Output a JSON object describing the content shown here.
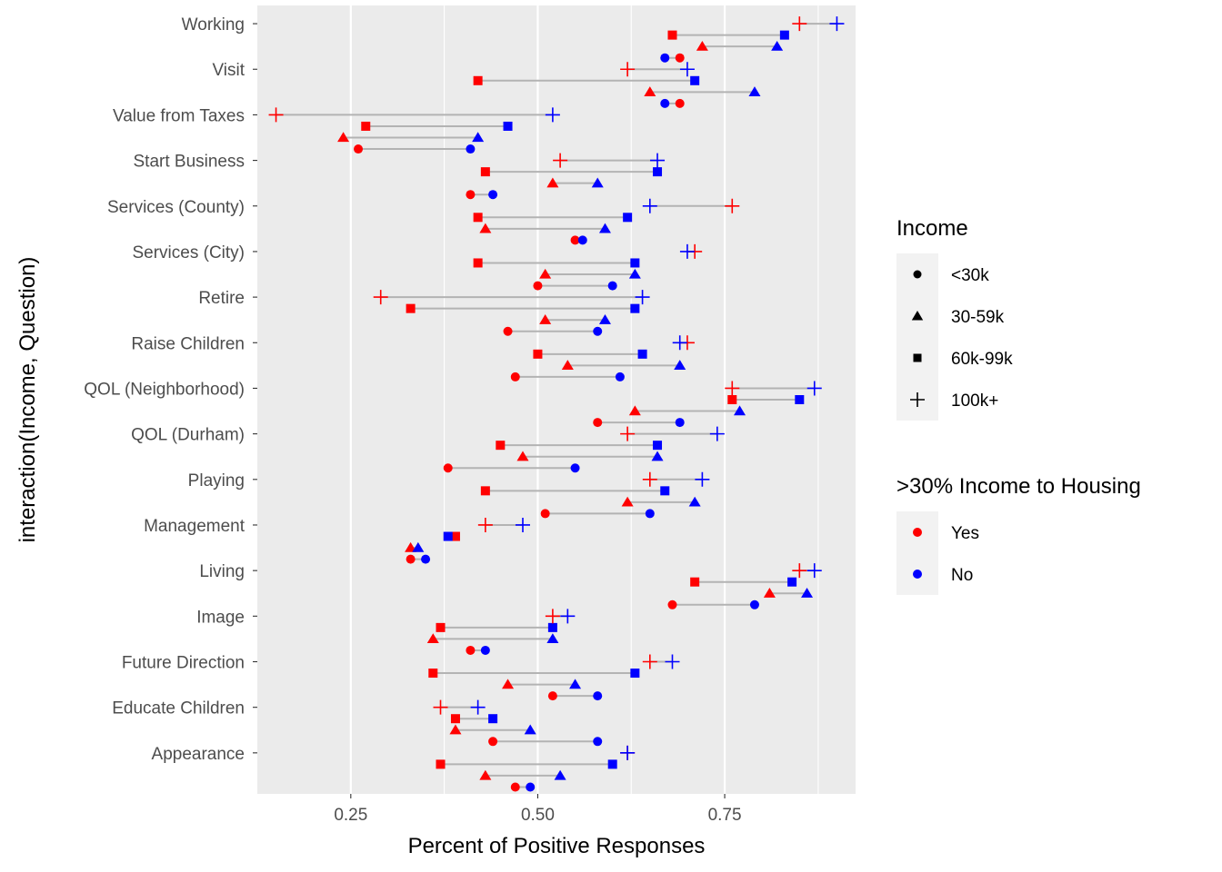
{
  "chart_data": {
    "type": "dumbbell",
    "xlabel": "Percent of Positive Responses",
    "ylabel": "interaction(Income, Question)",
    "xlim": [
      0.125,
      0.925
    ],
    "x_ticks": [
      0.25,
      0.5,
      0.75
    ],
    "x_tick_labels": [
      "0.25",
      "0.50",
      "0.75"
    ],
    "grid": true,
    "colors": {
      "yes": "#ff0000",
      "no": "#0000ff",
      "segment": "#b3b3b3",
      "panel": "#ebebeb",
      "grid": "#ffffff"
    },
    "legend_position": "right",
    "income_levels": [
      "<30k",
      "30-59k",
      "60k-99k",
      "100k+"
    ],
    "income_shapes": [
      "circle",
      "triangle",
      "square",
      "plus"
    ],
    "housing_levels": [
      "Yes",
      "No"
    ],
    "legend": {
      "income_title": "Income",
      "housing_title": ">30% Income to Housing"
    },
    "questions": [
      "Appearance",
      "Educate Children",
      "Future Direction",
      "Image",
      "Living",
      "Management",
      "Playing",
      "QOL (Durham)",
      "QOL (Neighborhood)",
      "Raise Children",
      "Retire",
      "Services (City)",
      "Services (County)",
      "Start Business",
      "Value from Taxes",
      "Visit",
      "Working"
    ],
    "values": {
      "Appearance": {
        "<30k": [
          0.47,
          0.49
        ],
        "30-59k": [
          0.43,
          0.53
        ],
        "60k-99k": [
          0.37,
          0.6
        ],
        "100k+": [
          0.62,
          0.62
        ]
      },
      "Educate Children": {
        "<30k": [
          0.44,
          0.58
        ],
        "30-59k": [
          0.39,
          0.49
        ],
        "60k-99k": [
          0.39,
          0.44
        ],
        "100k+": [
          0.37,
          0.42
        ]
      },
      "Future Direction": {
        "<30k": [
          0.52,
          0.58
        ],
        "30-59k": [
          0.46,
          0.55
        ],
        "60k-99k": [
          0.36,
          0.63
        ],
        "100k+": [
          0.65,
          0.68
        ]
      },
      "Image": {
        "<30k": [
          0.41,
          0.43
        ],
        "30-59k": [
          0.36,
          0.52
        ],
        "60k-99k": [
          0.37,
          0.52
        ],
        "100k+": [
          0.52,
          0.54
        ]
      },
      "Living": {
        "<30k": [
          0.68,
          0.79
        ],
        "30-59k": [
          0.81,
          0.86
        ],
        "60k-99k": [
          0.71,
          0.84
        ],
        "100k+": [
          0.85,
          0.87
        ]
      },
      "Management": {
        "<30k": [
          0.33,
          0.35
        ],
        "30-59k": [
          0.33,
          0.34
        ],
        "60k-99k": [
          0.39,
          0.38
        ],
        "100k+": [
          0.43,
          0.48
        ]
      },
      "Playing": {
        "<30k": [
          0.51,
          0.65
        ],
        "30-59k": [
          0.62,
          0.71
        ],
        "60k-99k": [
          0.43,
          0.67
        ],
        "100k+": [
          0.65,
          0.72
        ]
      },
      "QOL (Durham)": {
        "<30k": [
          0.38,
          0.55
        ],
        "30-59k": [
          0.48,
          0.66
        ],
        "60k-99k": [
          0.45,
          0.66
        ],
        "100k+": [
          0.62,
          0.74
        ]
      },
      "QOL (Neighborhood)": {
        "<30k": [
          0.58,
          0.69
        ],
        "30-59k": [
          0.63,
          0.77
        ],
        "60k-99k": [
          0.76,
          0.85
        ],
        "100k+": [
          0.76,
          0.87
        ]
      },
      "Raise Children": {
        "<30k": [
          0.47,
          0.61
        ],
        "30-59k": [
          0.54,
          0.69
        ],
        "60k-99k": [
          0.5,
          0.64
        ],
        "100k+": [
          0.7,
          0.69
        ]
      },
      "Retire": {
        "<30k": [
          0.46,
          0.58
        ],
        "30-59k": [
          0.51,
          0.59
        ],
        "60k-99k": [
          0.33,
          0.63
        ],
        "100k+": [
          0.29,
          0.64
        ]
      },
      "Services (City)": {
        "<30k": [
          0.5,
          0.6
        ],
        "30-59k": [
          0.51,
          0.63
        ],
        "60k-99k": [
          0.42,
          0.63
        ],
        "100k+": [
          0.71,
          0.7
        ]
      },
      "Services (County)": {
        "<30k": [
          0.55,
          0.56
        ],
        "30-59k": [
          0.43,
          0.59
        ],
        "60k-99k": [
          0.42,
          0.62
        ],
        "100k+": [
          0.76,
          0.65
        ]
      },
      "Start Business": {
        "<30k": [
          0.41,
          0.44
        ],
        "30-59k": [
          0.52,
          0.58
        ],
        "60k-99k": [
          0.43,
          0.66
        ],
        "100k+": [
          0.53,
          0.66
        ]
      },
      "Value from Taxes": {
        "<30k": [
          0.26,
          0.41
        ],
        "30-59k": [
          0.24,
          0.42
        ],
        "60k-99k": [
          0.27,
          0.46
        ],
        "100k+": [
          0.15,
          0.52
        ]
      },
      "Visit": {
        "<30k": [
          0.69,
          0.67
        ],
        "30-59k": [
          0.65,
          0.79
        ],
        "60k-99k": [
          0.42,
          0.71
        ],
        "100k+": [
          0.62,
          0.7
        ]
      },
      "Working": {
        "<30k": [
          0.69,
          0.67
        ],
        "30-59k": [
          0.72,
          0.82
        ],
        "60k-99k": [
          0.68,
          0.83
        ],
        "100k+": [
          0.85,
          0.9
        ]
      }
    }
  }
}
